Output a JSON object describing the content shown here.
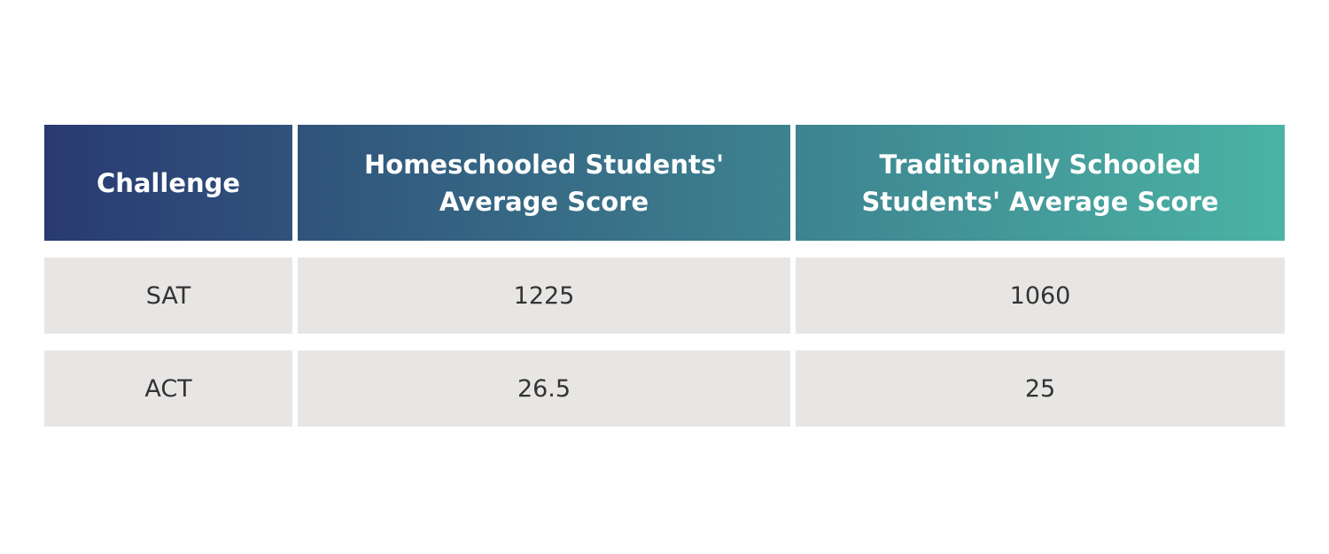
{
  "chart_data": {
    "type": "table",
    "columns": [
      "Challenge",
      "Homeschooled Students' Average Score",
      "Traditionally Schooled Students' Average Score"
    ],
    "rows": [
      [
        "SAT",
        "1225",
        "1060"
      ],
      [
        "ACT",
        "26.5",
        "25"
      ]
    ]
  },
  "colors": {
    "header_gradient_start": "#293a71",
    "header_gradient_end": "#4bb3a4",
    "header_text": "#ffffff",
    "row_background": "#e8e6e4",
    "body_text": "#333333",
    "page_background": "#ffffff"
  }
}
